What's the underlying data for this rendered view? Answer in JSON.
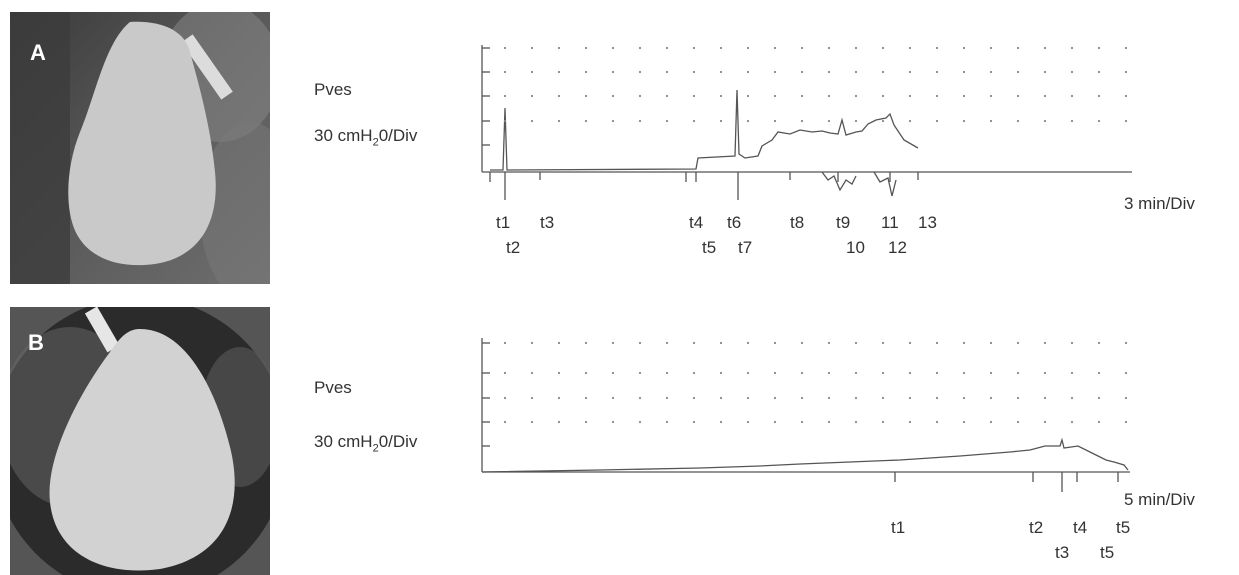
{
  "panels": [
    {
      "letter": "A",
      "ylabel_top": "Pves",
      "ylabel_scale_prefix": "30 cmH",
      "ylabel_scale_sub": "2",
      "ylabel_scale_suffix": "0/Div",
      "time_scale": "3 min/Div",
      "time_labels_row1": [
        "t1",
        "t3",
        "t4",
        "t6",
        "t8",
        "t9",
        "11",
        "13"
      ],
      "time_labels_row2": [
        "t2",
        "t5",
        "t7",
        "10",
        "12"
      ]
    },
    {
      "letter": "B",
      "ylabel_top": "Pves",
      "ylabel_scale_prefix": "30 cmH",
      "ylabel_scale_sub": "2",
      "ylabel_scale_suffix": "0/Div",
      "time_scale": "5 min/Div",
      "time_labels_row1": [
        "t1",
        "t2",
        "t4",
        "t5"
      ],
      "time_labels_row2": [
        "t3",
        "t5"
      ]
    }
  ]
}
